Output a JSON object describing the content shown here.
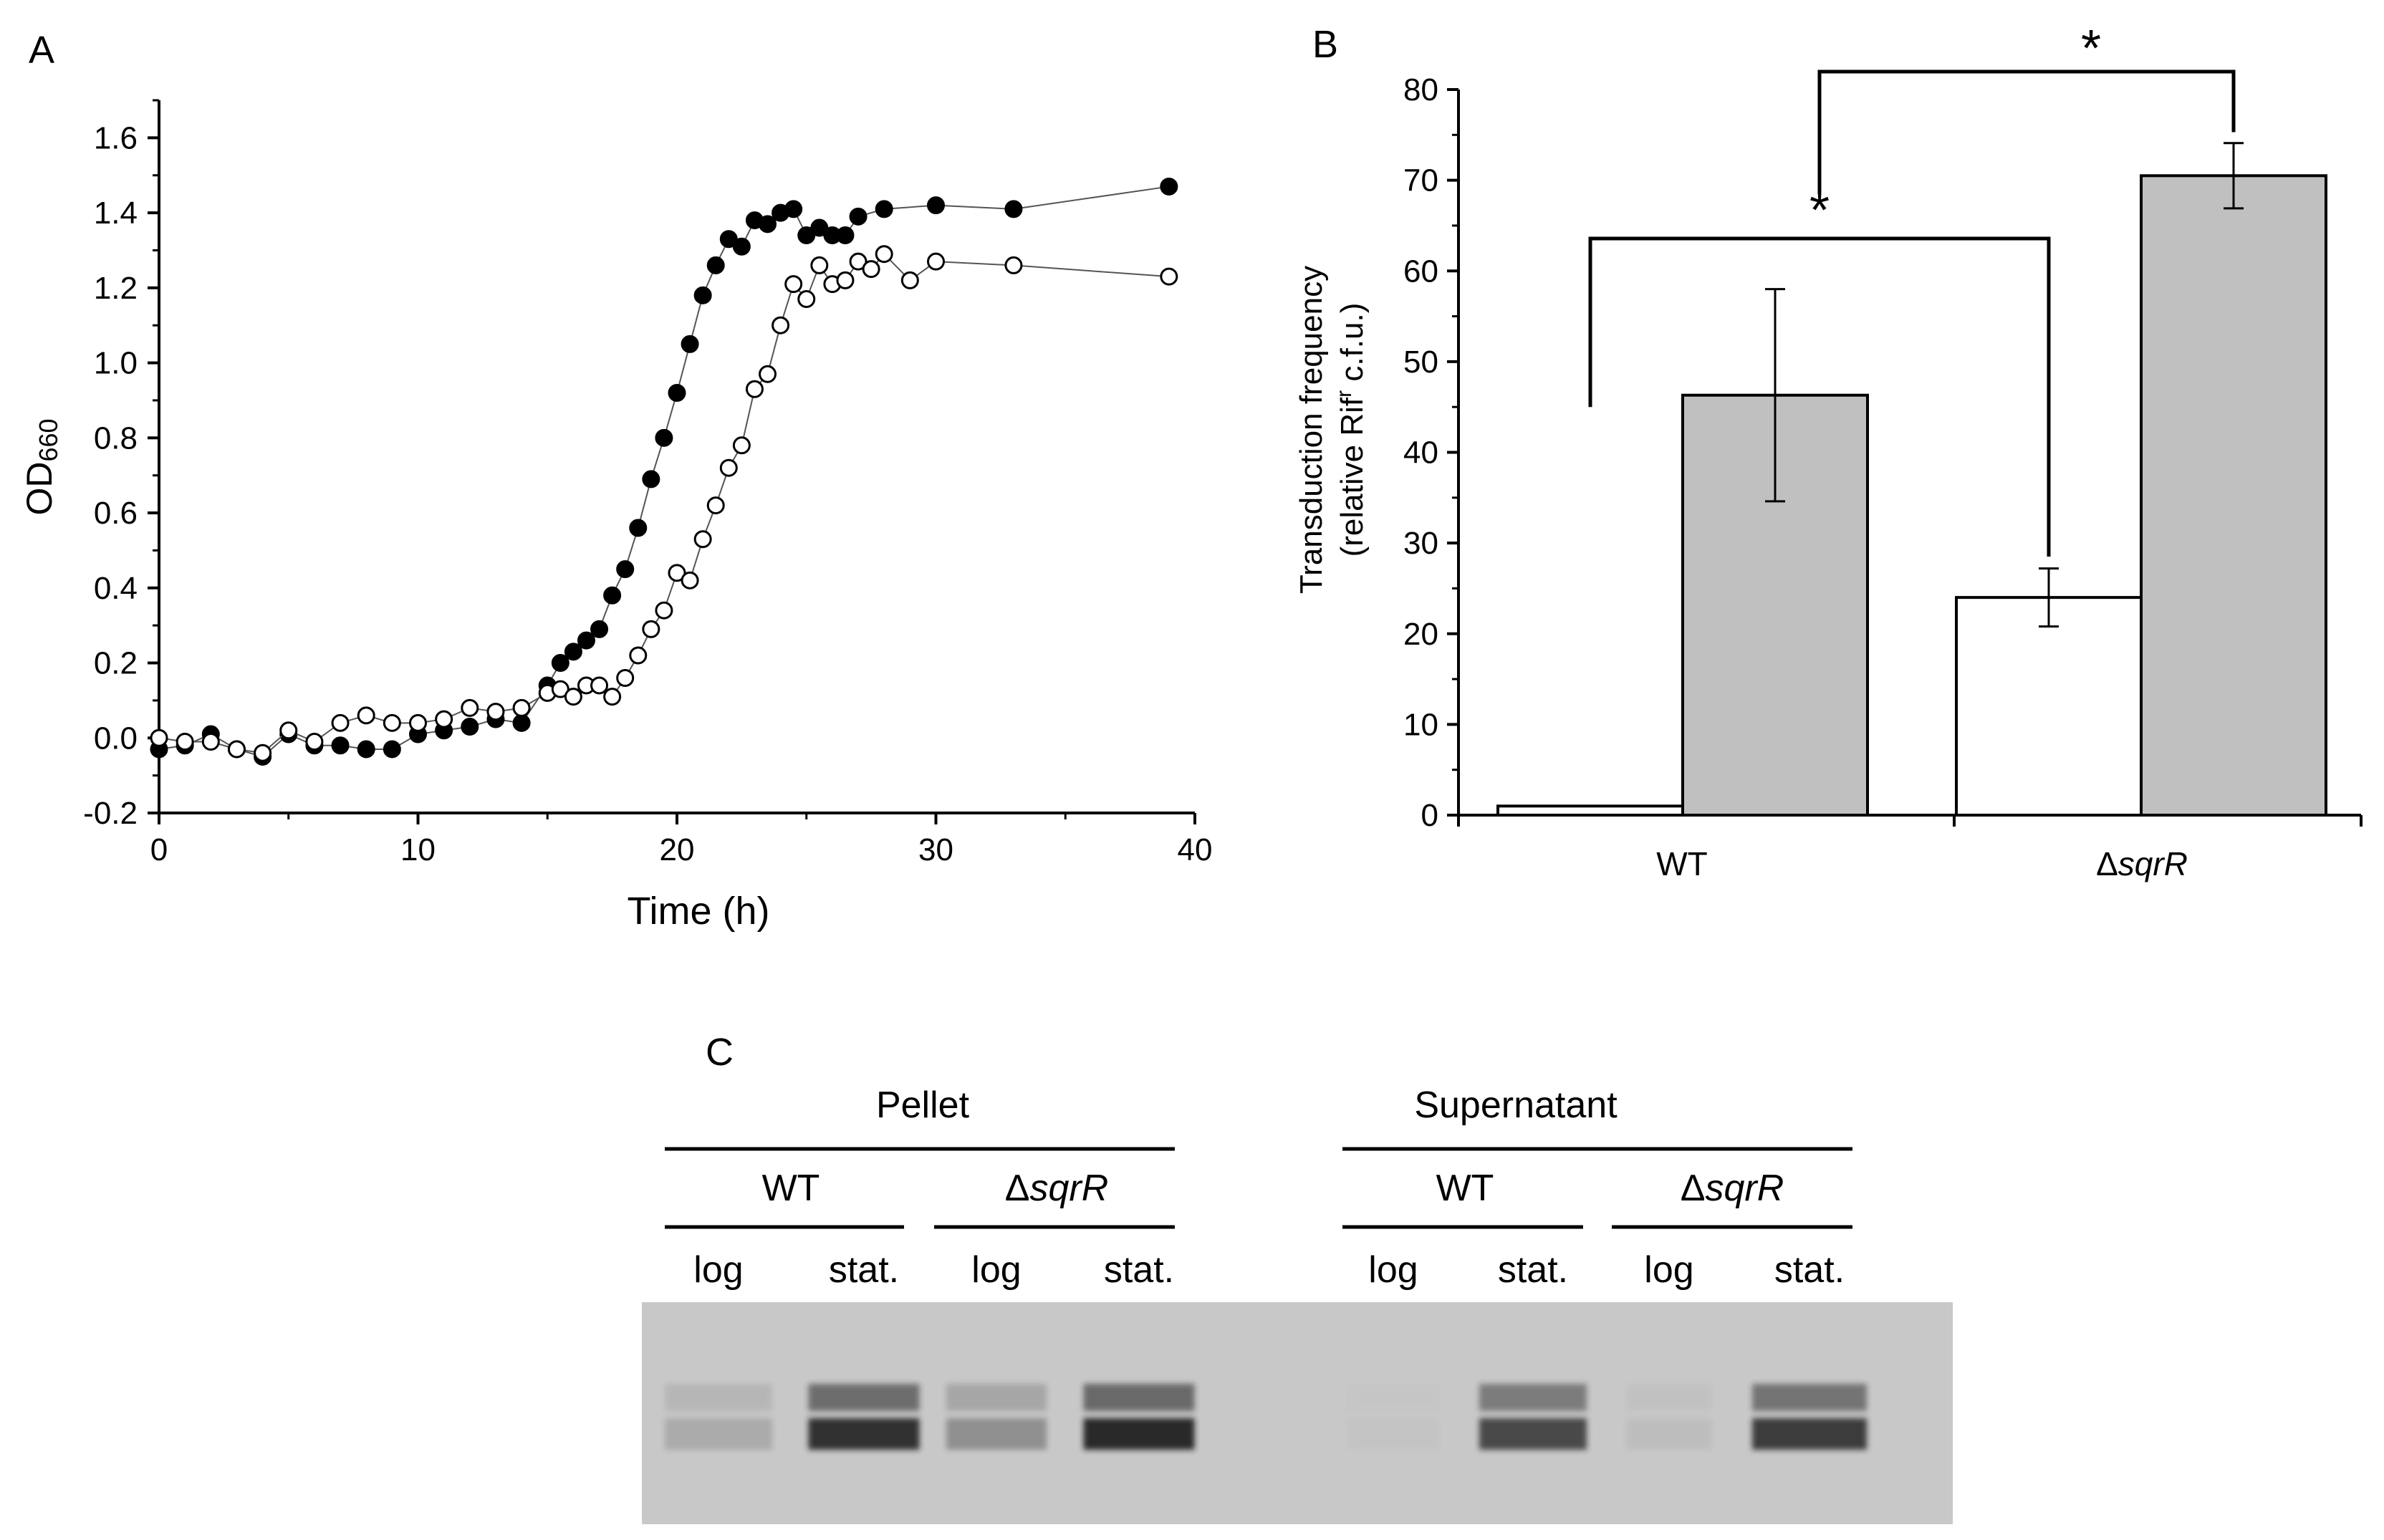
{
  "panel_labels": {
    "a": "A",
    "b": "B",
    "c": "C"
  },
  "colors": {
    "ink": "#000000",
    "bar_wt_strain": "#ffffff",
    "bar_gray": "#c0c0c0",
    "open_marker": "#ffffff",
    "filled_marker": "#000000",
    "gel_background": "#c8c8c8",
    "band": "#1e1e1e",
    "line": "#555555"
  },
  "chart_data": [
    {
      "id": "panel-a",
      "type": "line",
      "title": "",
      "xlabel": "Time (h)",
      "ylabel_main": "OD",
      "ylabel_sub": "660",
      "xlim": [
        0,
        40
      ],
      "ylim": [
        -0.2,
        1.7
      ],
      "x_ticks": [
        0,
        10,
        20,
        30,
        40
      ],
      "x_tick_labels": [
        "0",
        "10",
        "20",
        "30",
        "40"
      ],
      "y_ticks": [
        -0.2,
        0.0,
        0.2,
        0.4,
        0.6,
        0.8,
        1.0,
        1.2,
        1.4,
        1.6
      ],
      "y_tick_labels": [
        "-0.2",
        "0.0",
        "0.2",
        "0.4",
        "0.6",
        "0.8",
        "1.0",
        "1.2",
        "1.4",
        "1.6"
      ],
      "series": [
        {
          "name": "filled circles",
          "marker": "filled-circle",
          "x": [
            0,
            1,
            2,
            3,
            4,
            5,
            6,
            7,
            8,
            9,
            10,
            11,
            12,
            13,
            14,
            15,
            15.5,
            16,
            16.5,
            17,
            17.5,
            18,
            18.5,
            19,
            19.5,
            20,
            20.5,
            21,
            21.5,
            22,
            22.5,
            23,
            23.5,
            24,
            24.5,
            25,
            25.5,
            26,
            26.5,
            27,
            28,
            30,
            33,
            39
          ],
          "y": [
            -0.03,
            -0.02,
            0.01,
            -0.03,
            -0.05,
            0.01,
            -0.02,
            -0.02,
            -0.03,
            -0.03,
            0.01,
            0.02,
            0.03,
            0.05,
            0.04,
            0.14,
            0.2,
            0.23,
            0.26,
            0.29,
            0.38,
            0.45,
            0.56,
            0.69,
            0.8,
            0.92,
            1.05,
            1.18,
            1.26,
            1.33,
            1.31,
            1.38,
            1.37,
            1.4,
            1.41,
            1.34,
            1.36,
            1.34,
            1.34,
            1.39,
            1.41,
            1.42,
            1.41,
            1.47
          ]
        },
        {
          "name": "open circles",
          "marker": "open-circle",
          "x": [
            0,
            1,
            2,
            3,
            4,
            5,
            6,
            7,
            8,
            9,
            10,
            11,
            12,
            13,
            14,
            15,
            15.5,
            16,
            16.5,
            17,
            17.5,
            18,
            18.5,
            19,
            19.5,
            20,
            20.5,
            21,
            21.5,
            22,
            22.5,
            23,
            23.5,
            24,
            24.5,
            25,
            25.5,
            26,
            26.5,
            27,
            27.5,
            28,
            29,
            30,
            33,
            39
          ],
          "y": [
            0.0,
            -0.01,
            -0.01,
            -0.03,
            -0.04,
            0.02,
            -0.01,
            0.04,
            0.06,
            0.04,
            0.04,
            0.05,
            0.08,
            0.07,
            0.08,
            0.12,
            0.13,
            0.11,
            0.14,
            0.14,
            0.11,
            0.16,
            0.22,
            0.29,
            0.34,
            0.44,
            0.42,
            0.53,
            0.62,
            0.72,
            0.78,
            0.93,
            0.97,
            1.1,
            1.21,
            1.17,
            1.26,
            1.21,
            1.22,
            1.27,
            1.25,
            1.29,
            1.22,
            1.27,
            1.26,
            1.23
          ]
        }
      ]
    },
    {
      "id": "panel-b",
      "type": "bar",
      "title": "",
      "xlabel": "",
      "ylabel_line1": "Transduction frequency",
      "ylabel_line2": "(relative Rif",
      "ylabel_superscript": "r",
      "ylabel_line2_end": " c.f.u.)",
      "ylim": [
        0,
        80
      ],
      "y_ticks": [
        0,
        10,
        20,
        30,
        40,
        50,
        60,
        70,
        80
      ],
      "y_tick_labels": [
        "0",
        "10",
        "20",
        "30",
        "40",
        "50",
        "60",
        "70",
        "80"
      ],
      "categories": [
        "WT",
        "sqrR"
      ],
      "category_prefix": [
        "",
        "Δ"
      ],
      "series": [
        {
          "name": "white bars",
          "values": [
            1,
            24
          ],
          "errors": [
            null,
            3.2
          ]
        },
        {
          "name": "gray bars",
          "values": [
            46.3,
            70.5
          ],
          "errors": [
            11.7,
            3.6
          ]
        }
      ],
      "significance": [
        {
          "label": "*",
          "from": "WT white",
          "to": "sqrR white"
        },
        {
          "label": "*",
          "from": "WT white to sqrR white midpoint",
          "to": "sqrR gray"
        }
      ]
    }
  ],
  "panel_c": {
    "groups": [
      {
        "label": "Pellet",
        "strains": [
          {
            "prefix": "",
            "name": "WT",
            "italic": false
          },
          {
            "prefix": "Δ",
            "name": "sqrR",
            "italic": true
          }
        ]
      },
      {
        "label": "Supernatant",
        "strains": [
          {
            "prefix": "",
            "name": "WT",
            "italic": false
          },
          {
            "prefix": "Δ",
            "name": "sqrR",
            "italic": true
          }
        ]
      }
    ],
    "lanes": [
      "log",
      "stat.",
      "log",
      "stat.",
      "log",
      "stat.",
      "log",
      "stat."
    ],
    "band_intensity": [
      0.18,
      0.95,
      0.35,
      1.0,
      0.02,
      0.8,
      0.06,
      0.88
    ]
  }
}
